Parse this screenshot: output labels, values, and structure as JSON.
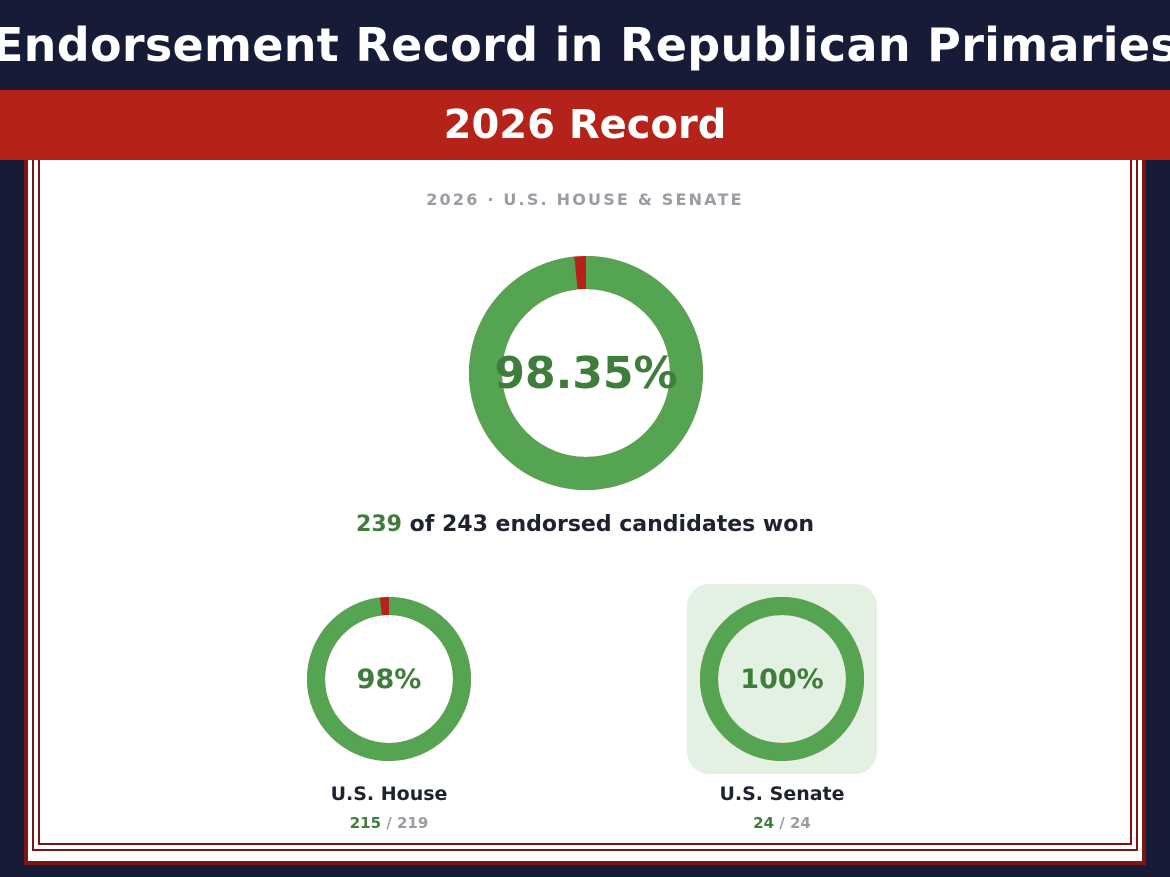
{
  "header": {
    "title": "Endorsement Record in Republican Primaries",
    "subtitle_band": "2026 Record"
  },
  "panel": {
    "subtitle": "2026 · U.S. HOUSE & SENATE",
    "summary_won": "239",
    "summary_rest": " of 243 endorsed candidates won"
  },
  "colors": {
    "ring_green": "#54a452",
    "text_green": "#3f7d3c",
    "ring_remainder": "#b5221a",
    "highlight_bg": "#e3f1e3",
    "navy": "#161c38",
    "red": "#b5221a"
  },
  "chart_data": [
    {
      "type": "pie",
      "variant": "donut",
      "label": "98.35%",
      "won": 239,
      "total": 243,
      "percent": 98.35
    },
    {
      "type": "pie",
      "variant": "donut",
      "name": "U.S. House",
      "label": "98%",
      "won": 215,
      "won_label": "215",
      "total_label": "/ 219",
      "total": 219,
      "percent": 98
    },
    {
      "type": "pie",
      "variant": "donut",
      "name": "U.S. Senate",
      "label": "100%",
      "won": 24,
      "won_label": "24",
      "total_label": "/ 24",
      "total": 24,
      "percent": 100,
      "highlighted": true
    }
  ]
}
